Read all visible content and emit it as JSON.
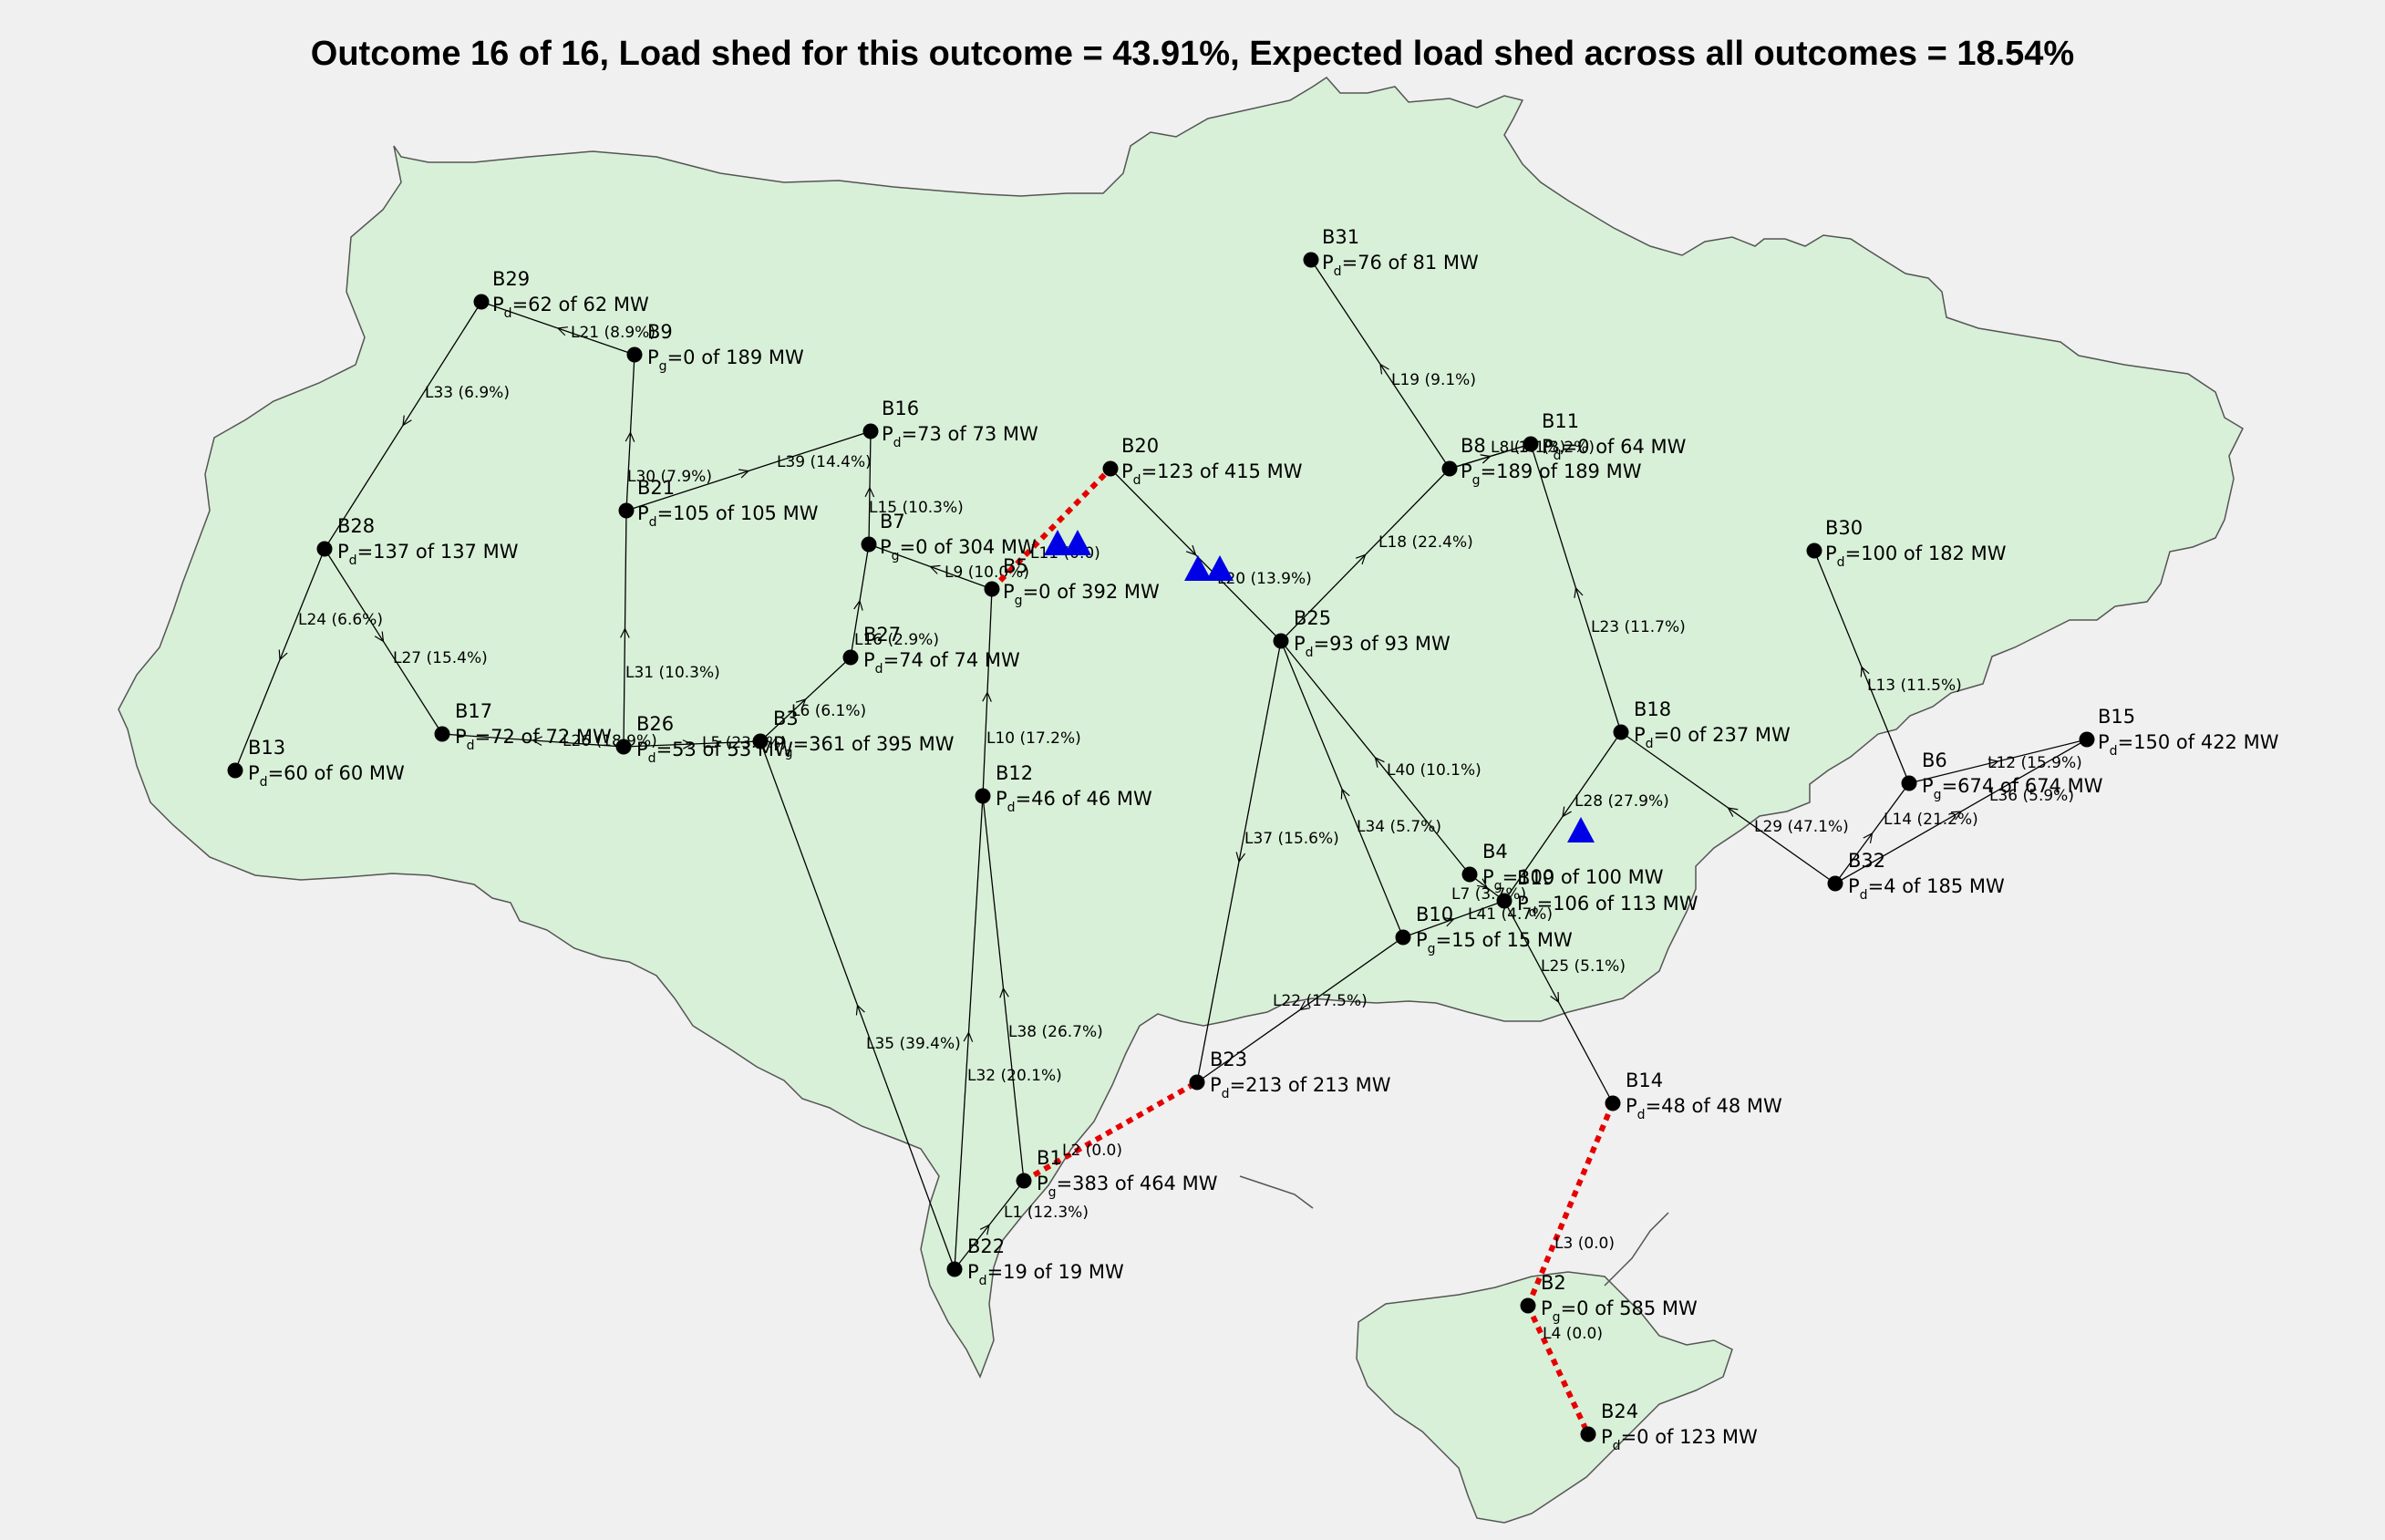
{
  "title": "Outcome 16 of 16, Load shed for this outcome = 43.91%, Expected load shed across all outcomes = 18.54%",
  "colors": {
    "land": "#d8f0d8",
    "border": "#555555",
    "line": "#000000",
    "failed_line": "#e60000",
    "bus": "#000000",
    "attack": "#0000e6",
    "background": "#f0f0f0"
  },
  "buses": [
    {
      "id": "B29",
      "kind": "d",
      "value": "=62 of 62 MW"
    },
    {
      "id": "B9",
      "kind": "g",
      "value": "=0 of 189 MW"
    },
    {
      "id": "B16",
      "kind": "d",
      "value": "=73 of 73 MW"
    },
    {
      "id": "B20",
      "kind": "d",
      "value": "=123 of 415 MW"
    },
    {
      "id": "B31",
      "kind": "d",
      "value": "=76 of 81 MW"
    },
    {
      "id": "B11",
      "kind": "d",
      "value": "=0 of 64 MW"
    },
    {
      "id": "B8",
      "kind": "g",
      "value": "=189 of 189 MW"
    },
    {
      "id": "B30",
      "kind": "d",
      "value": "=100 of 182 MW"
    },
    {
      "id": "B28",
      "kind": "d",
      "value": "=137 of 137 MW"
    },
    {
      "id": "B21",
      "kind": "d",
      "value": "=105 of 105 MW"
    },
    {
      "id": "B7",
      "kind": "g",
      "value": "=0 of 304 MW"
    },
    {
      "id": "B5",
      "kind": "g",
      "value": "=0 of 392 MW"
    },
    {
      "id": "B25",
      "kind": "d",
      "value": "=93 of 93 MW"
    },
    {
      "id": "B27",
      "kind": "d",
      "value": "=74 of 74 MW"
    },
    {
      "id": "B18",
      "kind": "d",
      "value": "=0 of 237 MW"
    },
    {
      "id": "B15",
      "kind": "d",
      "value": "=150 of 422 MW"
    },
    {
      "id": "B13",
      "kind": "d",
      "value": "=60 of 60 MW"
    },
    {
      "id": "B17",
      "kind": "d",
      "value": "=72 of 72 MW"
    },
    {
      "id": "B26",
      "kind": "d",
      "value": "=53 of 53 MW"
    },
    {
      "id": "B3",
      "kind": "g",
      "value": "=361 of 395 MW"
    },
    {
      "id": "B12",
      "kind": "d",
      "value": "=46 of 46 MW"
    },
    {
      "id": "B6",
      "kind": "g",
      "value": "=674 of 674 MW"
    },
    {
      "id": "B4",
      "kind": "g",
      "value": "=100 of 100 MW"
    },
    {
      "id": "B19",
      "kind": "d",
      "value": "=106 of 113 MW"
    },
    {
      "id": "B32",
      "kind": "d",
      "value": "=4 of 185 MW"
    },
    {
      "id": "B10",
      "kind": "g",
      "value": "=15 of 15 MW"
    },
    {
      "id": "B23",
      "kind": "d",
      "value": "=213 of 213 MW"
    },
    {
      "id": "B14",
      "kind": "d",
      "value": "=48 of 48 MW"
    },
    {
      "id": "B1",
      "kind": "g",
      "value": "=383 of 464 MW"
    },
    {
      "id": "B22",
      "kind": "d",
      "value": "=19 of 19 MW"
    },
    {
      "id": "B2",
      "kind": "g",
      "value": "=0 of 585 MW"
    },
    {
      "id": "B24",
      "kind": "d",
      "value": "=0 of 123 MW"
    }
  ],
  "lines": [
    {
      "id": "L1",
      "from": "B22",
      "to": "B1",
      "label": "L1 (12.3%)",
      "failed": false
    },
    {
      "id": "L2",
      "from": "B1",
      "to": "B23",
      "label": "L2 (0.0)",
      "failed": true
    },
    {
      "id": "L3",
      "from": "B14",
      "to": "B2",
      "label": "L3 (0.0)",
      "failed": true
    },
    {
      "id": "L4",
      "from": "B2",
      "to": "B24",
      "label": "L4 (0.0)",
      "failed": true
    },
    {
      "id": "L5",
      "from": "B26",
      "to": "B3",
      "label": "L5 (23.3%)",
      "failed": false
    },
    {
      "id": "L6",
      "from": "B3",
      "to": "B27",
      "label": "L6 (6.1%)",
      "failed": false
    },
    {
      "id": "L7",
      "from": "B4",
      "to": "B19",
      "label": "L7 (3.7%)",
      "failed": false
    },
    {
      "id": "L8",
      "from": "B8",
      "to": "B11",
      "label": "L8 (3.1%)",
      "failed": false
    },
    {
      "id": "L9",
      "from": "B5",
      "to": "B7",
      "label": "L9 (10.0%)",
      "failed": false
    },
    {
      "id": "L10",
      "from": "B12",
      "to": "B5",
      "label": "L10 (17.2%)",
      "failed": false
    },
    {
      "id": "L11",
      "from": "B5",
      "to": "B20",
      "label": "L11 (0.0)",
      "failed": true
    },
    {
      "id": "L12",
      "from": "B6",
      "to": "B15",
      "label": "L12 (15.9%)",
      "failed": false
    },
    {
      "id": "L13",
      "from": "B6",
      "to": "B30",
      "label": "L13 (11.5%)",
      "failed": false
    },
    {
      "id": "L14",
      "from": "B32",
      "to": "B6",
      "label": "L14 (21.2%)",
      "failed": false
    },
    {
      "id": "L15",
      "from": "B7",
      "to": "B16",
      "label": "L15 (10.3%)",
      "failed": false
    },
    {
      "id": "L16",
      "from": "B27",
      "to": "B7",
      "label": "L16 (2.9%)",
      "failed": false
    },
    {
      "id": "L17",
      "from": "B8",
      "to": "B11",
      "label": "L17 (3.2%)",
      "failed": false
    },
    {
      "id": "L18",
      "from": "B25",
      "to": "B8",
      "label": "L18 (22.4%)",
      "failed": false
    },
    {
      "id": "L19",
      "from": "B8",
      "to": "B31",
      "label": "L19 (9.1%)",
      "failed": false
    },
    {
      "id": "L20",
      "from": "B20",
      "to": "B25",
      "label": "L20 (13.9%)",
      "failed": false
    },
    {
      "id": "L21",
      "from": "B9",
      "to": "B29",
      "label": "L21 (8.9%)",
      "failed": false
    },
    {
      "id": "L22",
      "from": "B10",
      "to": "B23",
      "label": "L22 (17.5%)",
      "failed": false
    },
    {
      "id": "L23",
      "from": "B18",
      "to": "B11",
      "label": "L23 (11.7%)",
      "failed": false
    },
    {
      "id": "L24",
      "from": "B28",
      "to": "B13",
      "label": "L24 (6.6%)",
      "failed": false
    },
    {
      "id": "L25",
      "from": "B19",
      "to": "B14",
      "label": "L25 (5.1%)",
      "failed": false
    },
    {
      "id": "L26",
      "from": "B26",
      "to": "B17",
      "label": "L26 (18.9%)",
      "failed": false
    },
    {
      "id": "L27",
      "from": "B28",
      "to": "B17",
      "label": "L27 (15.4%)",
      "failed": false
    },
    {
      "id": "L28",
      "from": "B18",
      "to": "B19",
      "label": "L28 (27.9%)",
      "failed": false
    },
    {
      "id": "L29",
      "from": "B32",
      "to": "B18",
      "label": "L29 (47.1%)",
      "failed": false
    },
    {
      "id": "L30",
      "from": "B21",
      "to": "B9",
      "label": "L30 (7.9%)",
      "failed": false
    },
    {
      "id": "L31",
      "from": "B26",
      "to": "B21",
      "label": "L31 (10.3%)",
      "failed": false
    },
    {
      "id": "L32",
      "from": "B22",
      "to": "B12",
      "label": "L32 (20.1%)",
      "failed": false
    },
    {
      "id": "L33",
      "from": "B29",
      "to": "B28",
      "label": "L33 (6.9%)",
      "failed": false
    },
    {
      "id": "L34",
      "from": "B10",
      "to": "B25",
      "label": "L34 (5.7%)",
      "failed": false
    },
    {
      "id": "L35",
      "from": "B22",
      "to": "B3",
      "label": "L35 (39.4%)",
      "failed": false
    },
    {
      "id": "L36",
      "from": "B32",
      "to": "B15",
      "label": "L36 (5.9%)",
      "failed": false
    },
    {
      "id": "L37",
      "from": "B25",
      "to": "B23",
      "label": "L37 (15.6%)",
      "failed": false
    },
    {
      "id": "L38",
      "from": "B1",
      "to": "B12",
      "label": "L38 (26.7%)",
      "failed": false
    },
    {
      "id": "L39",
      "from": "B21",
      "to": "B16",
      "label": "L39 (14.4%)",
      "failed": false
    },
    {
      "id": "L40",
      "from": "B4",
      "to": "B25",
      "label": "L40 (10.1%)",
      "failed": false
    },
    {
      "id": "L41",
      "from": "B10",
      "to": "B19",
      "label": "L41 (4.7%)",
      "failed": false
    }
  ],
  "attacks": [
    {
      "name": "attack-marker-l11-a"
    },
    {
      "name": "attack-marker-l11-b"
    },
    {
      "name": "attack-marker-l20-a"
    },
    {
      "name": "attack-marker-l20-b"
    },
    {
      "name": "attack-marker-l28"
    }
  ]
}
